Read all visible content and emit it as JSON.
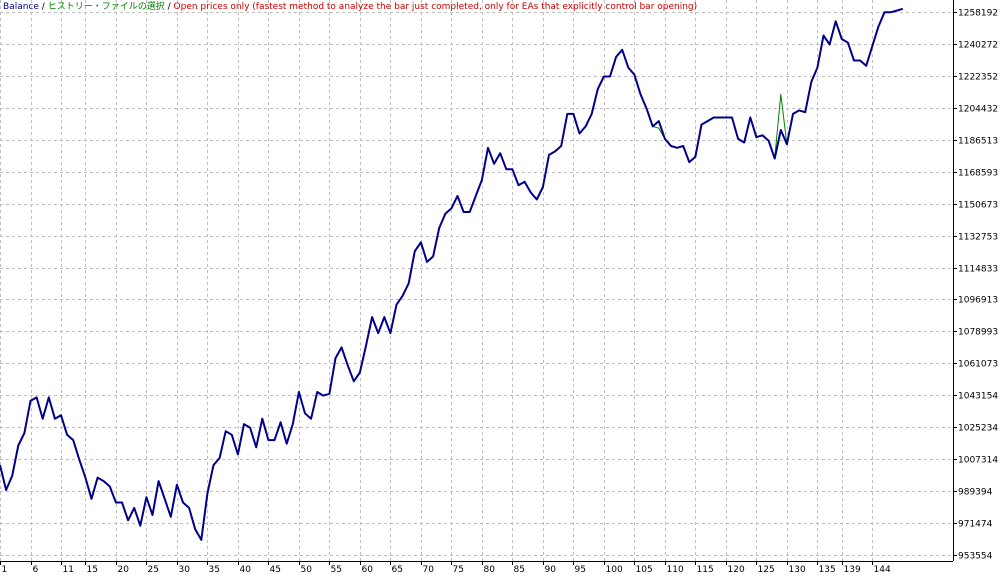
{
  "title": {
    "balance_label": "Balance",
    "separator": "/",
    "history_label": "ヒストリー・ファイルの選択",
    "model_label": "Open prices only (fastest method to analyze the bar just completed, only for EAs that explicitly control bar opening)",
    "colors": {
      "balance": "#00008b",
      "history": "#008000",
      "model": "#cc0000"
    }
  },
  "chart_data": {
    "type": "line",
    "grid": true,
    "xlim": [
      1,
      148
    ],
    "ylim": [
      953554,
      1266192
    ],
    "xticks": [
      1,
      6,
      11,
      15,
      20,
      25,
      30,
      35,
      40,
      45,
      50,
      55,
      60,
      65,
      70,
      75,
      80,
      85,
      90,
      95,
      100,
      105,
      110,
      115,
      120,
      125,
      130,
      135,
      139,
      144
    ],
    "yticks": [
      953554,
      971474,
      989394,
      1007314,
      1025234,
      1043154,
      1061073,
      1078993,
      1096913,
      1114833,
      1132753,
      1150673,
      1168593,
      1186513,
      1204432,
      1222352,
      1240272,
      1258192
    ],
    "series": [
      {
        "name": "Balance",
        "color": "#00008b",
        "values": [
          1004000,
          990000,
          998000,
          1015000,
          1022000,
          1040000,
          1042000,
          1030000,
          1042000,
          1030000,
          1032000,
          1021000,
          1018000,
          1007000,
          997000,
          985000,
          997000,
          995000,
          992000,
          983000,
          983000,
          973000,
          980000,
          970000,
          986000,
          976000,
          995000,
          985000,
          975000,
          993000,
          983000,
          980000,
          968000,
          962000,
          988000,
          1004000,
          1008000,
          1023000,
          1021000,
          1010000,
          1027000,
          1025000,
          1014000,
          1030000,
          1018000,
          1018000,
          1028000,
          1016000,
          1027000,
          1045000,
          1033000,
          1030000,
          1045000,
          1043000,
          1044000,
          1064000,
          1070000,
          1060000,
          1051000,
          1056000,
          1071000,
          1087000,
          1078000,
          1087000,
          1078000,
          1094000,
          1099000,
          1106000,
          1124000,
          1129000,
          1118000,
          1121000,
          1137000,
          1145000,
          1148000,
          1155000,
          1146000,
          1146000,
          1155000,
          1164000,
          1182000,
          1173000,
          1179000,
          1170000,
          1170000,
          1161000,
          1163000,
          1157000,
          1153000,
          1160000,
          1178000,
          1180000,
          1183000,
          1201000,
          1201000,
          1190000,
          1194000,
          1201000,
          1215000,
          1222000,
          1222000,
          1233000,
          1237000,
          1227000,
          1223000,
          1212000,
          1204000,
          1194000,
          1197000,
          1187000,
          1183000,
          1182000,
          1183000,
          1174000,
          1177000,
          1195000,
          1197000,
          1199000,
          1199000,
          1199000,
          1199000,
          1187000,
          1185000,
          1199000,
          1188000,
          1189000,
          1186000,
          1176000,
          1192000,
          1184000,
          1201000,
          1203000,
          1202000,
          1219000,
          1227000,
          1245000,
          1240000,
          1253000,
          1243000,
          1241000,
          1231000,
          1231000,
          1228000,
          1239000,
          1250000,
          1258000,
          1258000,
          1259000,
          1260000
        ]
      },
      {
        "name": "",
        "color": "#008000",
        "values": [
          1004000,
          990000,
          998000,
          1015000,
          1022000,
          1040000,
          1042000,
          1030000,
          1042000,
          1030000,
          1032000,
          1021000,
          1018000,
          1007000,
          997000,
          985000,
          997000,
          995000,
          992000,
          983000,
          983000,
          973000,
          980000,
          970000,
          986000,
          976000,
          995000,
          985000,
          975000,
          993000,
          983000,
          980000,
          968000,
          962000,
          988000,
          1004000,
          1008000,
          1023000,
          1021000,
          1010000,
          1027000,
          1025000,
          1014000,
          1030000,
          1018000,
          1018000,
          1028000,
          1016000,
          1027000,
          1045000,
          1033000,
          1030000,
          1045000,
          1043000,
          1044000,
          1064000,
          1070000,
          1060000,
          1051000,
          1056000,
          1071000,
          1087000,
          1078000,
          1087000,
          1078000,
          1094000,
          1099000,
          1106000,
          1124000,
          1129000,
          1118000,
          1121000,
          1137000,
          1145000,
          1148000,
          1155000,
          1146000,
          1146000,
          1155000,
          1164000,
          1182000,
          1173000,
          1179000,
          1170000,
          1170000,
          1161000,
          1163000,
          1157000,
          1153000,
          1160000,
          1178000,
          1180000,
          1183000,
          1201000,
          1201000,
          1190000,
          1194000,
          1201000,
          1215000,
          1222000,
          1222000,
          1233000,
          1237000,
          1227000,
          1223000,
          1212000,
          1204000,
          1194000,
          1193000,
          1187000,
          1183000,
          1182000,
          1183000,
          1174000,
          1177000,
          1195000,
          1197000,
          1199000,
          1199000,
          1199000,
          1199000,
          1187000,
          1185000,
          1199000,
          1188000,
          1189000,
          1186000,
          1176000,
          1212000,
          1184000,
          1201000,
          1203000,
          1202000,
          1219000,
          1227000,
          1245000,
          1240000,
          1253000,
          1243000,
          1241000,
          1231000,
          1231000,
          1228000,
          1239000,
          1250000,
          1258000,
          1258000,
          1259000,
          1260000
        ]
      }
    ]
  }
}
